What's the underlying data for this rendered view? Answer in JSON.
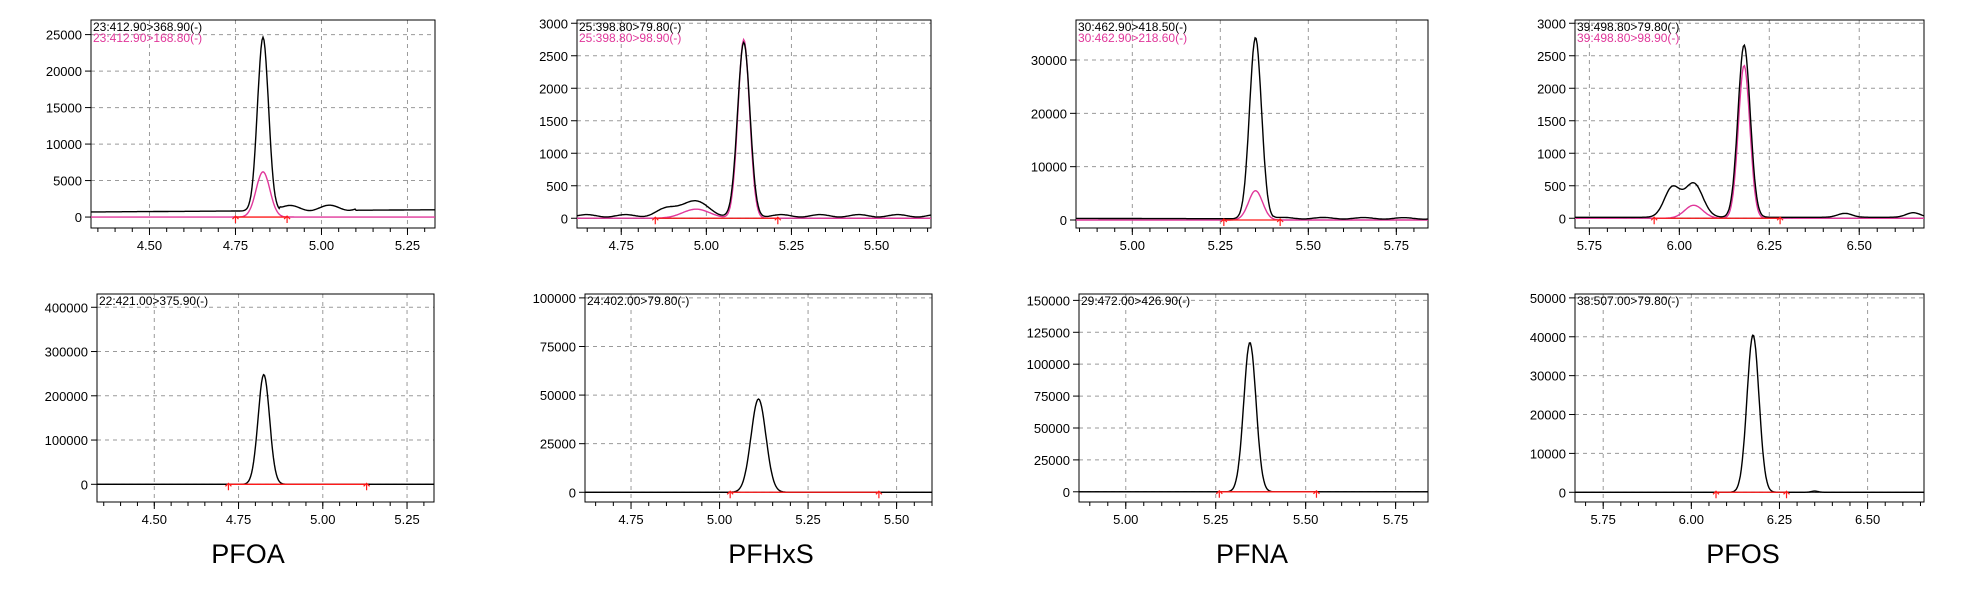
{
  "compounds": [
    {
      "label": "PFOA"
    },
    {
      "label": "PFHxS"
    },
    {
      "label": "PFNA"
    },
    {
      "label": "PFOS"
    }
  ],
  "colors": {
    "quant": "#000000",
    "qual": "#e0379a",
    "baseline": "#ff1a1a",
    "grid": "#9a9a9a"
  },
  "chart_data": [
    {
      "type": "line",
      "compound": "PFOA",
      "row": "top",
      "xlim": [
        4.33,
        5.33
      ],
      "ylim": [
        -1500,
        27000
      ],
      "xticks": [
        "4.50",
        "4.75",
        "5.00",
        "5.25"
      ],
      "yticks": [
        "0",
        "5000",
        "10000",
        "15000",
        "20000",
        "25000"
      ],
      "series": [
        {
          "name": "23:412.90>368.90(-)",
          "role": "quant",
          "baseline_level": 700,
          "baseline_slope": 300,
          "bumps": [
            [
              4.83,
              23800,
              0.016
            ]
          ],
          "wiggles": [
            [
              4.88,
              5.1,
              900
            ]
          ]
        },
        {
          "name": "23:412.90>168.80(-)",
          "role": "qual",
          "baseline_level": 0,
          "baseline_slope": 0,
          "bumps": [
            [
              4.83,
              6200,
              0.02
            ]
          ],
          "wiggles": []
        }
      ],
      "integration": {
        "start": 4.75,
        "end": 4.9
      }
    },
    {
      "type": "line",
      "compound": "PFHxS",
      "row": "top",
      "xlim": [
        4.62,
        5.66
      ],
      "ylim": [
        -150,
        3050
      ],
      "xticks": [
        "4.75",
        "5.00",
        "5.25",
        "5.50"
      ],
      "yticks": [
        "0",
        "500",
        "1000",
        "1500",
        "2000",
        "2500",
        "3000"
      ],
      "series": [
        {
          "name": "25:398.80>79.80(-)",
          "role": "quant",
          "baseline_level": 20,
          "baseline_slope": 0,
          "bumps": [
            [
              5.11,
              2650,
              0.018
            ],
            [
              4.96,
              230,
              0.04
            ],
            [
              4.88,
              80,
              0.03
            ]
          ],
          "wiggles": [
            [
              4.62,
              5.66,
              45
            ]
          ]
        },
        {
          "name": "25:398.80>98.90(-)",
          "role": "qual",
          "baseline_level": 0,
          "baseline_slope": 0,
          "bumps": [
            [
              5.11,
              2750,
              0.017
            ],
            [
              4.97,
              140,
              0.04
            ]
          ],
          "wiggles": []
        }
      ],
      "integration": {
        "start": 4.85,
        "end": 5.21
      }
    },
    {
      "type": "line",
      "compound": "PFNA",
      "row": "top",
      "xlim": [
        4.84,
        5.84
      ],
      "ylim": [
        -1500,
        37500
      ],
      "xticks": [
        "5.00",
        "5.25",
        "5.50",
        "5.75"
      ],
      "yticks": [
        "0",
        "10000",
        "20000",
        "30000"
      ],
      "series": [
        {
          "name": "30:462.90>418.50(-)",
          "role": "quant",
          "baseline_level": 300,
          "baseline_slope": -150,
          "bumps": [
            [
              5.35,
              34000,
              0.017
            ]
          ],
          "wiggles": [
            [
              5.4,
              5.84,
              350
            ]
          ]
        },
        {
          "name": "30:462.90>218.60(-)",
          "role": "qual",
          "baseline_level": 0,
          "baseline_slope": 0,
          "bumps": [
            [
              5.35,
              5500,
              0.02
            ]
          ],
          "wiggles": []
        }
      ],
      "integration": {
        "start": 5.26,
        "end": 5.42
      }
    },
    {
      "type": "line",
      "compound": "PFOS",
      "row": "top",
      "xlim": [
        5.71,
        6.68
      ],
      "ylim": [
        -150,
        3050
      ],
      "xticks": [
        "5.75",
        "6.00",
        "6.25",
        "6.50"
      ],
      "yticks": [
        "0",
        "500",
        "1000",
        "1500",
        "2000",
        "2500",
        "3000"
      ],
      "series": [
        {
          "name": "39:498.80>79.80(-)",
          "role": "quant",
          "baseline_level": 15,
          "baseline_slope": 0,
          "bumps": [
            [
              6.18,
              2650,
              0.017
            ],
            [
              6.04,
              520,
              0.025
            ],
            [
              5.98,
              450,
              0.022
            ],
            [
              6.46,
              60,
              0.02
            ],
            [
              6.65,
              70,
              0.02
            ]
          ],
          "wiggles": []
        },
        {
          "name": "39:498.80>98.90(-)",
          "role": "qual",
          "baseline_level": 0,
          "baseline_slope": 0,
          "bumps": [
            [
              6.18,
              2350,
              0.016
            ],
            [
              6.04,
              200,
              0.025
            ]
          ],
          "wiggles": []
        }
      ],
      "integration": {
        "start": 5.93,
        "end": 6.28
      }
    },
    {
      "type": "line",
      "compound": "PFOA",
      "row": "bottom",
      "xlim": [
        4.33,
        5.33
      ],
      "ylim": [
        -40000,
        430000
      ],
      "xticks": [
        "4.50",
        "4.75",
        "5.00",
        "5.25"
      ],
      "yticks": [
        "0",
        "100000",
        "200000",
        "300000",
        "400000"
      ],
      "series": [
        {
          "name": "22:421.00>375.90(-)",
          "role": "quant",
          "baseline_level": 0,
          "baseline_slope": 0,
          "bumps": [
            [
              4.825,
              248000,
              0.017
            ]
          ],
          "wiggles": []
        }
      ],
      "integration": {
        "start": 4.72,
        "end": 5.13
      }
    },
    {
      "type": "line",
      "compound": "PFHxS",
      "row": "bottom",
      "xlim": [
        4.62,
        5.6
      ],
      "ylim": [
        -5000,
        102000
      ],
      "xticks": [
        "4.75",
        "5.00",
        "5.25",
        "5.50"
      ],
      "yticks": [
        "0",
        "25000",
        "50000",
        "75000",
        "100000"
      ],
      "series": [
        {
          "name": "24:402.00>79.80(-)",
          "role": "quant",
          "baseline_level": 0,
          "baseline_slope": 0,
          "bumps": [
            [
              5.11,
              48000,
              0.021
            ]
          ],
          "wiggles": []
        }
      ],
      "integration": {
        "start": 5.03,
        "end": 5.45
      }
    },
    {
      "type": "line",
      "compound": "PFNA",
      "row": "bottom",
      "xlim": [
        4.87,
        5.84
      ],
      "ylim": [
        -8000,
        155000
      ],
      "xticks": [
        "5.00",
        "5.25",
        "5.50",
        "5.75"
      ],
      "yticks": [
        "0",
        "25000",
        "50000",
        "75000",
        "100000",
        "125000",
        "150000"
      ],
      "series": [
        {
          "name": "29:472.00>426.90(-)",
          "role": "quant",
          "baseline_level": 0,
          "baseline_slope": 0,
          "bumps": [
            [
              5.345,
              117000,
              0.017
            ]
          ],
          "wiggles": []
        }
      ],
      "integration": {
        "start": 5.26,
        "end": 5.53
      }
    },
    {
      "type": "line",
      "compound": "PFOS",
      "row": "bottom",
      "xlim": [
        5.67,
        6.66
      ],
      "ylim": [
        -2500,
        51000
      ],
      "xticks": [
        "5.75",
        "6.00",
        "6.25",
        "6.50"
      ],
      "yticks": [
        "0",
        "10000",
        "20000",
        "30000",
        "40000",
        "50000"
      ],
      "series": [
        {
          "name": "38:507.00>79.80(-)",
          "role": "quant",
          "baseline_level": 0,
          "baseline_slope": 0,
          "bumps": [
            [
              6.175,
              40500,
              0.017
            ],
            [
              6.35,
              300,
              0.01
            ]
          ],
          "wiggles": []
        }
      ],
      "integration": {
        "start": 6.07,
        "end": 6.27
      }
    }
  ]
}
